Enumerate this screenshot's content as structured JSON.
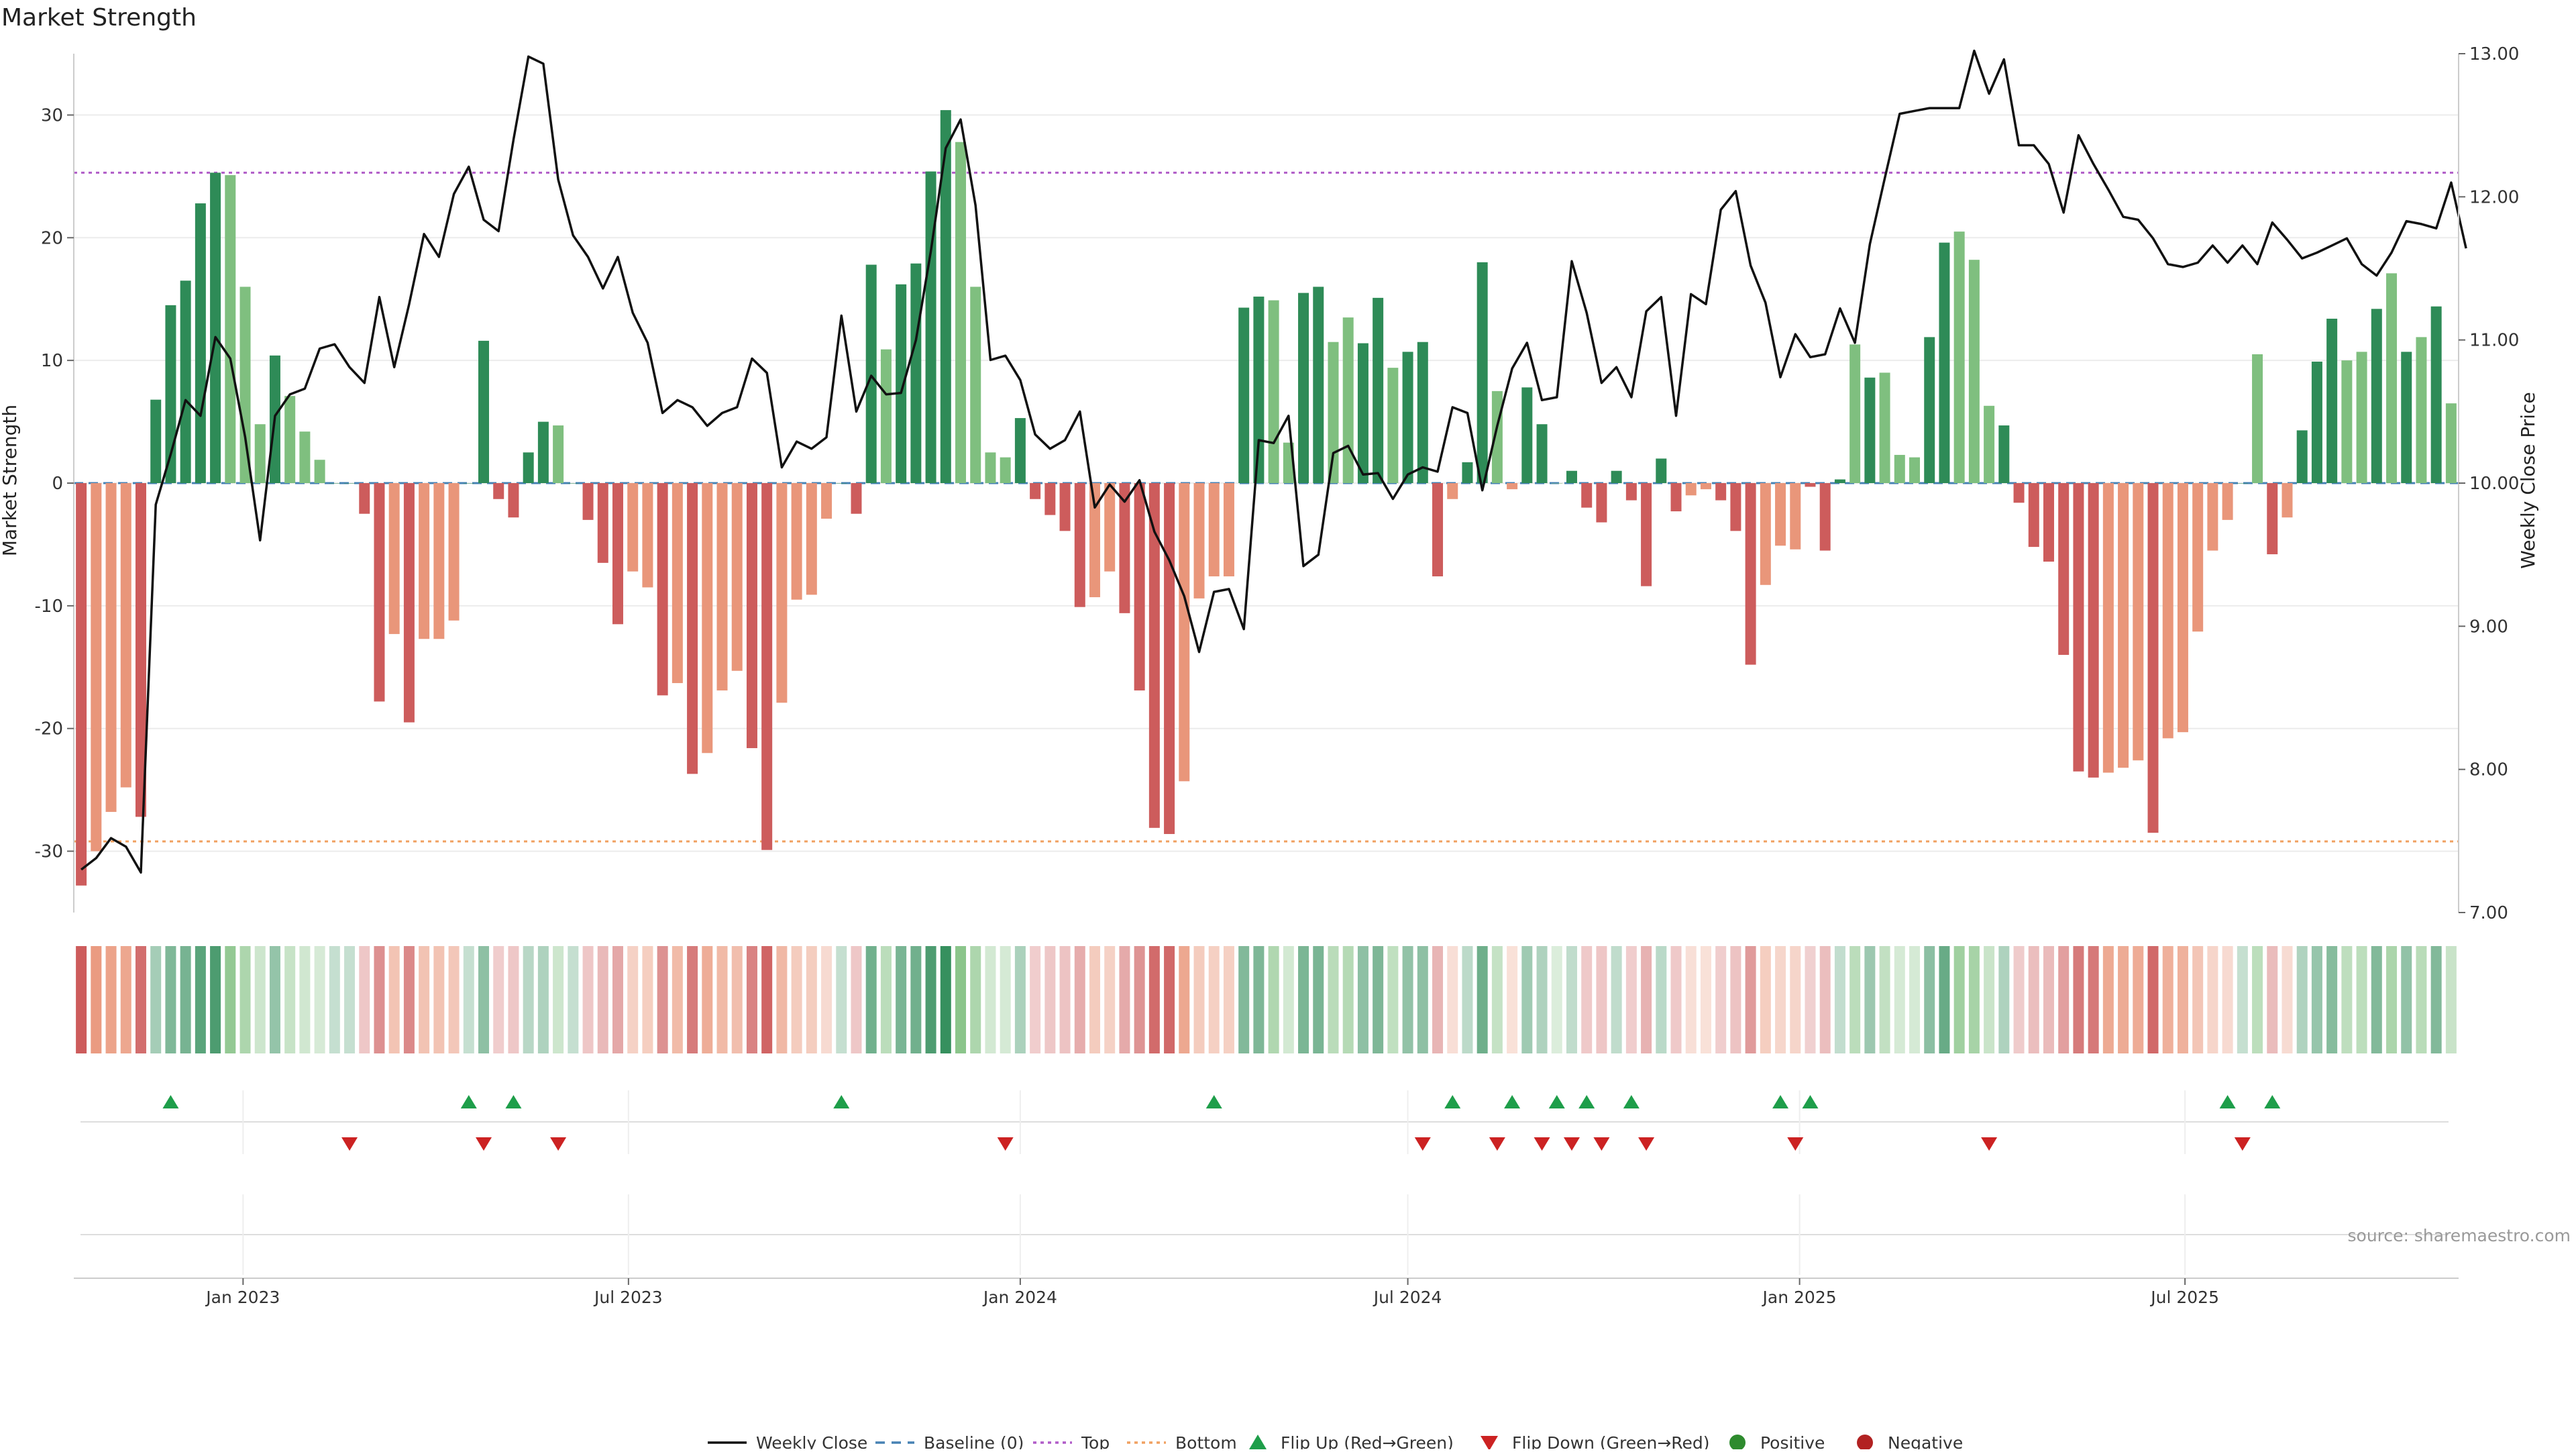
{
  "title": "Market Strength",
  "source": "source: sharemaestro.com",
  "colors": {
    "pos_strong": "#2e8b57",
    "pos_light": "#7fbf7f",
    "neg_strong": "#cd5c5c",
    "neg_light": "#e9967a",
    "line": "#111111",
    "baseline": "#4682b4",
    "top": "#b05cc8",
    "bottom": "#f0a060",
    "flip_up": "#1e9e4a",
    "flip_down": "#cc2222",
    "positive_dot": "#2e8b2e",
    "negative_dot": "#b22222"
  },
  "chart_data": {
    "type": "bar",
    "left_axis": {
      "label": "Market Strength",
      "range": [
        -35,
        35
      ],
      "ticks": [
        -30,
        -20,
        -10,
        0,
        10,
        20,
        30
      ]
    },
    "right_axis": {
      "label": "Weekly Close Price",
      "range": [
        7.0,
        13.0
      ],
      "ticks": [
        "7.00",
        "8.00",
        "9.00",
        "10.00",
        "11.00",
        "12.00",
        "13.00"
      ]
    },
    "x_axis": {
      "start_date": "2022-10-17",
      "end_date": "2025-11-03",
      "tick_labels": [
        "Jan 2023",
        "Jul 2023",
        "Jan 2024",
        "Jul 2024",
        "Jan 2025",
        "Jul 2025"
      ],
      "tick_dates": [
        "2023-01-01",
        "2023-07-01",
        "2024-01-01",
        "2024-07-01",
        "2025-01-01",
        "2025-07-01"
      ]
    },
    "reference_lines": {
      "baseline": 0,
      "top": 25.3,
      "bottom": -29.2
    },
    "strength": [
      -32.8,
      -30,
      -26.8,
      -24.8,
      -27.2,
      6.8,
      14.5,
      16.5,
      22.8,
      25.3,
      25.1,
      16,
      4.8,
      10.4,
      7.1,
      4.2,
      1.9,
      0,
      0,
      -2.5,
      -17.8,
      -12.3,
      -19.5,
      -12.7,
      -12.7,
      -11.2,
      0,
      11.6,
      -1.3,
      -2.8,
      2.5,
      5,
      4.7,
      0,
      -3,
      -6.5,
      -11.5,
      -7.2,
      -8.5,
      -17.3,
      -16.3,
      -23.7,
      -22,
      -16.9,
      -15.3,
      -21.6,
      -29.9,
      -17.9,
      -9.5,
      -9.1,
      -2.9,
      0,
      -2.5,
      17.8,
      10.9,
      16.2,
      17.9,
      25.4,
      30.4,
      27.8,
      16,
      2.5,
      2.1,
      5.3,
      -1.3,
      -2.6,
      -3.9,
      -10.1,
      -9.3,
      -7.2,
      -10.6,
      -16.9,
      -28.1,
      -28.6,
      -24.3,
      -9.4,
      -7.6,
      -7.6,
      14.3,
      15.2,
      14.9,
      3.3,
      15.5,
      16,
      11.5,
      13.5,
      11.4,
      15.1,
      9.4,
      10.7,
      11.5,
      -7.6,
      -1.3,
      1.7,
      18,
      7.5,
      -0.5,
      7.8,
      4.8,
      0,
      1,
      -2,
      -3.2,
      1,
      -1.4,
      -8.4,
      2,
      -2.3,
      -1,
      -0.5,
      -1.4,
      -3.9,
      -14.8,
      -8.3,
      -5.1,
      -5.4,
      -0.3,
      -5.5,
      0.3,
      11.3,
      8.6,
      9,
      2.3,
      2.1,
      11.9,
      19.6,
      20.5,
      18.2,
      6.3,
      4.7,
      -1.6,
      -5.2,
      -6.4,
      -14,
      -23.5,
      -24,
      -23.6,
      -23.2,
      -22.6,
      -28.5,
      -20.8,
      -20.3,
      -12.1,
      -5.5,
      -3,
      0,
      10.5,
      -5.8,
      -2.8,
      4.3,
      9.9,
      13.4,
      10,
      10.7,
      14.2,
      17.1,
      10.7,
      11.9,
      14.4,
      6.5
    ],
    "shade": [
      "s",
      "l",
      "l",
      "l",
      "s",
      "s",
      "s",
      "s",
      "s",
      "s",
      "l",
      "l",
      "l",
      "s",
      "l",
      "l",
      "l",
      "s",
      "s",
      "s",
      "s",
      "l",
      "s",
      "l",
      "l",
      "l",
      "s",
      "s",
      "s",
      "s",
      "s",
      "s",
      "l",
      "s",
      "s",
      "s",
      "s",
      "l",
      "l",
      "s",
      "l",
      "s",
      "l",
      "l",
      "l",
      "s",
      "s",
      "l",
      "l",
      "l",
      "l",
      "s",
      "s",
      "s",
      "l",
      "s",
      "s",
      "s",
      "s",
      "l",
      "l",
      "l",
      "l",
      "s",
      "s",
      "s",
      "s",
      "s",
      "l",
      "l",
      "s",
      "s",
      "s",
      "s",
      "l",
      "l",
      "l",
      "l",
      "s",
      "s",
      "l",
      "l",
      "s",
      "s",
      "l",
      "l",
      "s",
      "s",
      "l",
      "s",
      "s",
      "s",
      "l",
      "s",
      "s",
      "l",
      "l",
      "s",
      "s",
      "l",
      "s",
      "s",
      "s",
      "s",
      "s",
      "s",
      "s",
      "s",
      "l",
      "l",
      "s",
      "s",
      "s",
      "l",
      "l",
      "l",
      "s",
      "s",
      "s",
      "l",
      "s",
      "l",
      "l",
      "l",
      "s",
      "s",
      "l",
      "l",
      "l",
      "s",
      "s",
      "s",
      "s",
      "s",
      "s",
      "s",
      "l",
      "l",
      "l",
      "s",
      "l",
      "l",
      "l",
      "l",
      "l",
      "s",
      "l",
      "s",
      "l",
      "s",
      "s",
      "s",
      "l",
      "l",
      "s",
      "l",
      "s",
      "l",
      "s",
      "l",
      "l"
    ],
    "close": [
      7.3,
      7.38,
      7.52,
      7.46,
      7.28,
      9.85,
      10.2,
      10.58,
      10.47,
      11.02,
      10.87,
      10.32,
      9.6,
      10.47,
      10.62,
      10.66,
      10.94,
      10.97,
      10.81,
      10.7,
      11.3,
      10.81,
      11.25,
      11.74,
      11.58,
      12.02,
      12.21,
      11.84,
      11.76,
      12.4,
      12.98,
      12.93,
      12.12,
      11.73,
      11.58,
      11.36,
      11.58,
      11.19,
      10.98,
      10.49,
      10.58,
      10.53,
      10.4,
      10.49,
      10.53,
      10.87,
      10.77,
      10.11,
      10.29,
      10.24,
      10.32,
      11.17,
      10.5,
      10.75,
      10.62,
      10.63,
      11,
      11.62,
      12.34,
      12.54,
      11.94,
      10.86,
      10.89,
      10.72,
      10.34,
      10.24,
      10.3,
      10.5,
      9.83,
      9.99,
      9.87,
      10.02,
      9.66,
      9.46,
      9.21,
      8.82,
      9.24,
      9.26,
      8.98,
      10.3,
      10.28,
      10.47,
      9.42,
      9.5,
      10.21,
      10.26,
      10.06,
      10.07,
      9.89,
      10.06,
      10.11,
      10.08,
      10.53,
      10.49,
      9.95,
      10.4,
      10.8,
      10.98,
      10.58,
      10.6,
      11.55,
      11.19,
      10.7,
      10.81,
      10.6,
      11.2,
      11.3,
      10.47,
      11.32,
      11.25,
      11.91,
      12.04,
      11.52,
      11.26,
      10.74,
      11.04,
      10.88,
      10.9,
      11.22,
      10.98,
      11.67,
      12.13,
      12.58,
      12.6,
      12.62,
      12.62,
      12.62,
      13.02,
      12.72,
      12.96,
      12.36,
      12.36,
      12.23,
      11.89,
      12.43,
      12.23,
      12.05,
      11.86,
      11.84,
      11.71,
      11.53,
      11.51,
      11.54,
      11.66,
      11.54,
      11.66,
      11.53,
      11.82,
      11.7,
      11.57,
      11.61,
      11.66,
      11.71,
      11.53,
      11.45,
      11.61,
      11.83,
      11.81,
      11.78,
      12.1,
      11.64
    ],
    "flip_up_weeks": [
      6,
      26,
      29,
      51,
      76,
      92,
      96,
      99,
      101,
      104,
      114,
      116,
      144,
      147
    ],
    "flip_down_weeks": [
      18,
      27,
      32,
      62,
      90,
      95,
      98,
      100,
      102,
      105,
      115,
      128,
      145
    ],
    "legend": [
      "Weekly Close",
      "Baseline (0)",
      "Top",
      "Bottom",
      "Flip Up (Red→Green)",
      "Flip Down (Green→Red)",
      "Positive",
      "Negative"
    ]
  }
}
